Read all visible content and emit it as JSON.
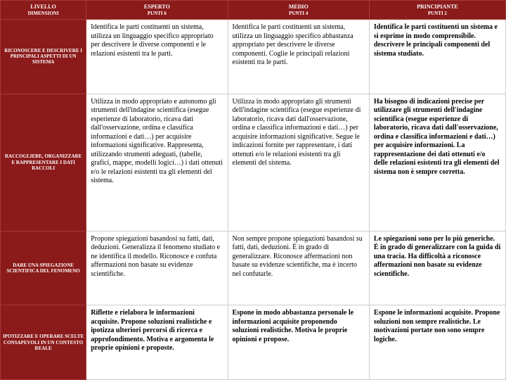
{
  "colors": {
    "header_bg": "#8b1a1a",
    "header_text": "#ffffff",
    "cell_bg": "#ffffff",
    "cell_text": "#000000",
    "border_header": "#a83838",
    "border_cell": "#cccccc"
  },
  "fonts": {
    "family": "Georgia, Times New Roman, serif",
    "header_size": 8,
    "rowheader_size": 7,
    "cell_size": 10
  },
  "headers": {
    "col0": {
      "line1": "LIVELLO",
      "line2": "DIMENSIONI"
    },
    "col1": {
      "line1": "ESPERTO",
      "line2": "PUNTI 6"
    },
    "col2": {
      "line1": "MEDIO",
      "line2": "PUNTI 4"
    },
    "col3": {
      "line1": "PRINCIPIANTE",
      "line2": "PUNTI 2"
    }
  },
  "rows": [
    {
      "label": "RICONOSCERE E DESCRIVERE I PRINCIPALI ASPETTI DI UN SISTEMA",
      "esperto": "Identifica le parti costituenti un sistema, utilizza un linguaggio specifico appropriato per descrivere le diverse componenti e le relazioni esistenti tra le parti.",
      "medio": "Identifica le parti costituenti un sistema, utilizza un linguaggio specifico abbastanza appropriato per descrivere le diverse componenti. Coglie le principali relazioni esistenti tra le parti.",
      "principiante": "Identifica le parti costituenti un sistema e si esprime in modo comprensibile. descrivere le principali componenti del sistema studiato."
    },
    {
      "label": "RACCOGLIERE, ORGANIZZARE E RAPPRESENTARE I DATI RACCOLI",
      "esperto": "Utilizza in modo appropriato e autonomo gli strumenti dell'indagine scientifica (esegue esperienze di laboratorio, ricava dati dall'osservazione, ordina e classifica informazioni e dati…) per acquisire informazioni significative. Rappresenta, utilizzando strumenti adeguati, (tabelle, grafici, mappe, modelli logici…) i dati ottenuti e/o le relazioni esistenti tra gli elementi del sistema.",
      "medio": "Utilizza in modo appropriato gli strumenti dell'indagine scientifica (esegue esperienze di laboratorio, ricava dati dall'osservazione, ordina e classifica informazioni e dati…) per acquisire informazioni significative. Segue le indicazioni fornite per rappresentare, i dati ottenuti e/o le relazioni esistenti tra gli elementi del sistema.",
      "principiante": "Ha bisogno di indicazioni precise per utilizzare gli strumenti dell'indagine scientifica (esegue esperienze di laboratorio, ricava dati dall'osservazione, ordina e classifica informazioni e dati…) per acquisire informazioni. La rappresentazione dei dati ottenuti e/o delle relazioni esistenti tra gli elementi del sistema non è sempre corretta."
    },
    {
      "label": "DARE UNA SPIEGAZIONE SCIENTIFICA DEL FENOMENO",
      "esperto": "Propone spiegazioni basandosi su fatti, dati, deduzioni. Generalizza il fenomeno studiato e ne identifica il modello. Riconosce e confuta affermazioni non basate su evidenze scientifiche.",
      "medio": "Non sempre propone spiegazioni basandosi su fatti, dati, deduzioni. È in grado di generalizzare. Riconosce affermazioni non basate su evidenze scientifiche, ma è incerto nel confutarle.",
      "principiante": "Le spiegazioni sono per lo più generiche. È in grado di generalizzare con la guida di una tracia. Ha difficoltà a riconosce affermazioni non basate su evidenze scientifiche."
    },
    {
      "label": "IPOTIZZARE E OPERARE SCELTE CONSAPEVOLI IN UN CONTESTO REALE",
      "esperto": "Riflette e rielabora le informazioni acquisite. Propone soluzioni realistiche e ipotizza ulteriori percorsi di ricerca e approfondimento. Motiva e argomenta le proprie opinioni e proposte.",
      "medio": "Espone in modo abbastanza personale le informazioni acquisite proponendo soluzioni realistiche. Motiva le proprie opinioni e propose.",
      "principiante": "Espone le informazioni acquisite. Propone soluzioni non sempre realistiche. Le motivazioni portate non sono sempre logiche."
    }
  ]
}
